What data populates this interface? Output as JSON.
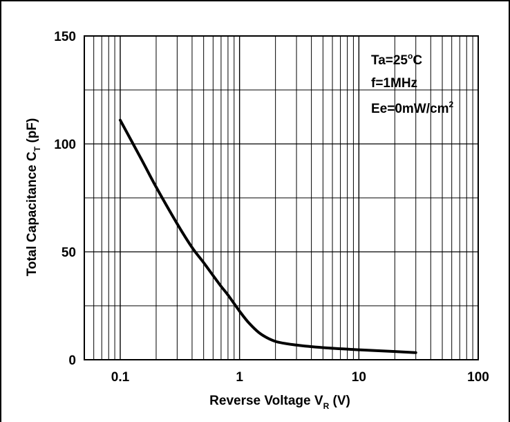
{
  "chart_data": {
    "type": "line",
    "xlabel": "Reverse Voltage V",
    "xlabel_sub": "R",
    "xlabel_unit": " (V)",
    "ylabel": "Total Capacitance C",
    "ylabel_sub": "T",
    "ylabel_unit": " (pF)",
    "xscale": "log",
    "xlim": [
      0.05,
      100
    ],
    "ylim": [
      0,
      150
    ],
    "x_ticks": [
      {
        "value": 0.1,
        "label": "0.1"
      },
      {
        "value": 1,
        "label": "1"
      },
      {
        "value": 10,
        "label": "10"
      },
      {
        "value": 100,
        "label": "100"
      }
    ],
    "y_ticks": [
      {
        "value": 0,
        "label": "0"
      },
      {
        "value": 50,
        "label": "50"
      },
      {
        "value": 100,
        "label": "100"
      },
      {
        "value": 150,
        "label": "150"
      }
    ],
    "grid": true,
    "y_minor_gridlines": [
      25,
      75,
      125
    ],
    "annotations": {
      "temp": {
        "prefix": "Ta=25",
        "sup": "o",
        "suffix": "C"
      },
      "freq": {
        "text": "f=1MHz"
      },
      "irr": {
        "prefix": "Ee=0mW/cm",
        "sup": "2"
      }
    },
    "series": [
      {
        "color": "#000000",
        "x": [
          0.1,
          0.15,
          0.2,
          0.3,
          0.4,
          0.5,
          0.6,
          0.7,
          0.8,
          1.0,
          1.2,
          1.5,
          2.0,
          3.0,
          5.0,
          10.0,
          20.0,
          30.0
        ],
        "y": [
          111,
          93,
          80,
          63,
          52,
          45,
          39,
          34,
          30,
          22.5,
          17,
          12,
          8.5,
          6.8,
          5.6,
          4.6,
          3.8,
          3.3
        ]
      }
    ]
  }
}
